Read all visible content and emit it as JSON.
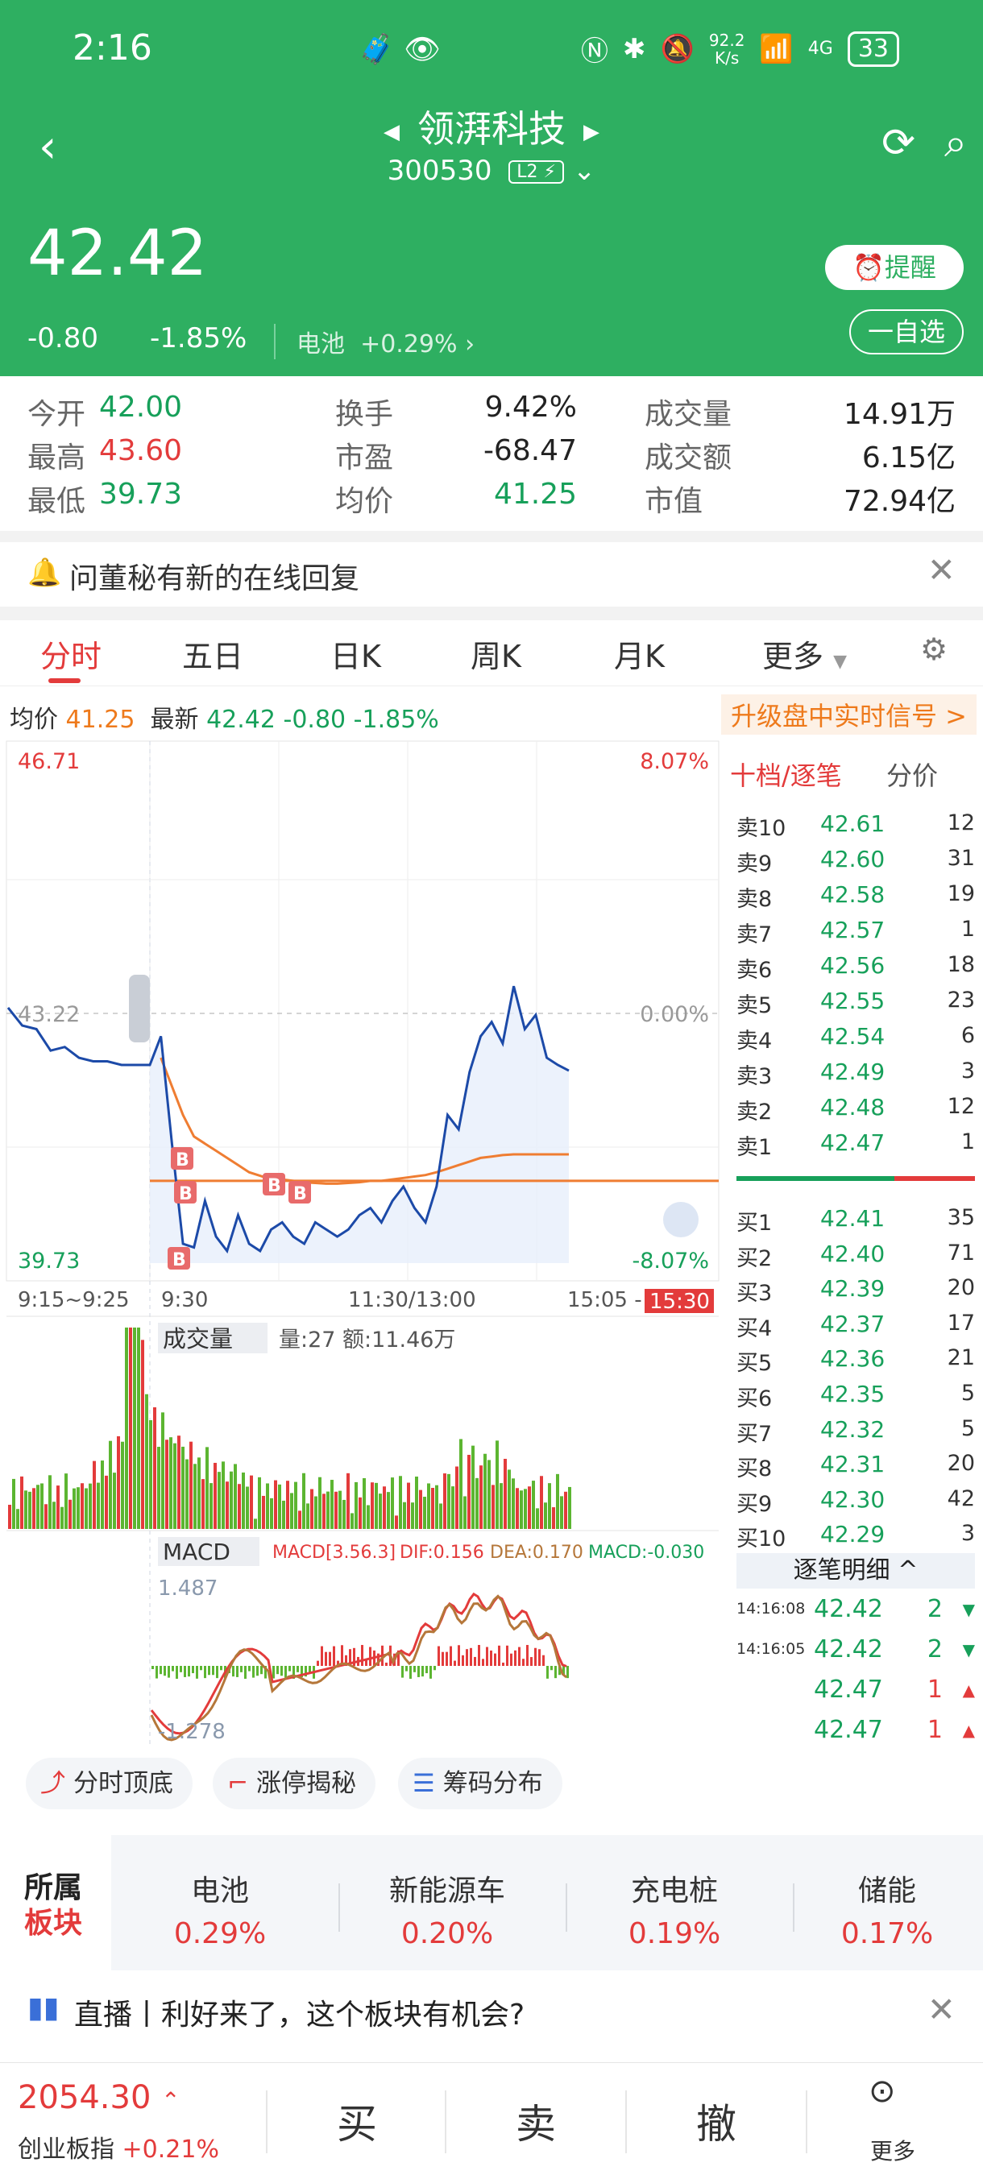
{
  "status": {
    "time": "2:16",
    "net_speed": "92.2",
    "net_unit": "K/s",
    "signal": "6",
    "net_type": "4G",
    "battery": "33"
  },
  "header": {
    "stock_name": "领湃科技",
    "stock_code": "300530",
    "level_tag": "L2",
    "price": "42.42",
    "change": "-0.80",
    "change_pct": "-1.85%",
    "sector_name": "电池",
    "sector_change": "+0.29%",
    "alert_label": "提醒",
    "watchlist_label": "一自选"
  },
  "stats": [
    {
      "label": "今开",
      "value": "42.00",
      "color": "green"
    },
    {
      "label": "换手",
      "value": "9.42%",
      "color": "black"
    },
    {
      "label": "成交量",
      "value": "14.91万",
      "color": "black"
    },
    {
      "label": "最高",
      "value": "43.60",
      "color": "red"
    },
    {
      "label": "市盈",
      "value": "-68.47",
      "color": "black"
    },
    {
      "label": "成交额",
      "value": "6.15亿",
      "color": "black"
    },
    {
      "label": "最低",
      "value": "39.73",
      "color": "green"
    },
    {
      "label": "均价",
      "value": "41.25",
      "color": "green"
    },
    {
      "label": "市值",
      "value": "72.94亿",
      "color": "black"
    }
  ],
  "notice": {
    "text": "问董秘有新的在线回复"
  },
  "tabs": [
    "分时",
    "五日",
    "日K",
    "周K",
    "月K",
    "更多"
  ],
  "infobar": {
    "avg_label": "均价",
    "avg_value": "41.25",
    "last_label": "最新",
    "last_value": "42.42",
    "last_change": "-0.80",
    "last_pct": "-1.85%",
    "upgrade": "升级盘中实时信号 >"
  },
  "chart_data": {
    "type": "line",
    "title": "",
    "y_high": "46.71",
    "y_mid": "43.22",
    "y_low": "39.73",
    "pct_high": "8.07%",
    "pct_mid": "0.00%",
    "pct_low": "-8.07%",
    "x_labels": [
      "9:15~9:25",
      "9:30",
      "11:30/13:00",
      "15:05 -",
      "15:30"
    ],
    "ylim": [
      39.73,
      46.71
    ],
    "series": [
      {
        "name": "price",
        "color": "#1c4aa8",
        "values": [
          43.3,
          43.05,
          43.0,
          42.7,
          42.75,
          42.6,
          42.55,
          42.55,
          42.5,
          42.5,
          42.5,
          42.9,
          41.4,
          40.0,
          39.95,
          40.6,
          40.1,
          39.9,
          40.4,
          40.0,
          39.9,
          40.2,
          40.3,
          40.1,
          40.0,
          40.3,
          40.2,
          40.1,
          40.2,
          40.4,
          40.5,
          40.3,
          40.6,
          40.8,
          40.5,
          40.3,
          40.8,
          41.8,
          41.6,
          42.4,
          42.9,
          43.1,
          42.8,
          43.6,
          43.0,
          43.2,
          42.6,
          42.5,
          42.42
        ]
      },
      {
        "name": "avg",
        "color": "#ef7d32",
        "values": [
          null,
          null,
          null,
          null,
          null,
          null,
          null,
          null,
          null,
          null,
          null,
          42.6,
          42.2,
          41.8,
          41.5,
          41.4,
          41.3,
          41.2,
          41.1,
          41.0,
          40.95,
          40.9,
          40.9,
          40.88,
          40.86,
          40.85,
          40.84,
          40.84,
          40.85,
          40.86,
          40.88,
          40.88,
          40.9,
          40.92,
          40.94,
          40.96,
          41.0,
          41.05,
          41.1,
          41.15,
          41.2,
          41.22,
          41.24,
          41.25,
          41.25,
          41.25,
          41.25,
          41.25,
          41.25
        ]
      }
    ],
    "ref_line": 40.88,
    "volume": {
      "label": "成交量",
      "text": "量:27 额:11.46万"
    },
    "macd": {
      "label": "MACD",
      "params": "MACD[3.56.3]",
      "dif": "DIF:0.156",
      "dea": "DEA:0.170",
      "macd": "MACD:-0.030",
      "top": "1.487",
      "bottom": "-1.278"
    }
  },
  "book": {
    "tab1": "十档/逐笔",
    "tab2": "分价",
    "asks": [
      {
        "l": "卖10",
        "p": "42.61",
        "q": "12"
      },
      {
        "l": "卖9",
        "p": "42.60",
        "q": "31"
      },
      {
        "l": "卖8",
        "p": "42.58",
        "q": "19"
      },
      {
        "l": "卖7",
        "p": "42.57",
        "q": "1"
      },
      {
        "l": "卖6",
        "p": "42.56",
        "q": "18"
      },
      {
        "l": "卖5",
        "p": "42.55",
        "q": "23"
      },
      {
        "l": "卖4",
        "p": "42.54",
        "q": "6"
      },
      {
        "l": "卖3",
        "p": "42.49",
        "q": "3"
      },
      {
        "l": "卖2",
        "p": "42.48",
        "q": "12"
      },
      {
        "l": "卖1",
        "p": "42.47",
        "q": "1"
      }
    ],
    "bids": [
      {
        "l": "买1",
        "p": "42.41",
        "q": "35"
      },
      {
        "l": "买2",
        "p": "42.40",
        "q": "71"
      },
      {
        "l": "买3",
        "p": "42.39",
        "q": "20"
      },
      {
        "l": "买4",
        "p": "42.37",
        "q": "17"
      },
      {
        "l": "买5",
        "p": "42.36",
        "q": "21"
      },
      {
        "l": "买6",
        "p": "42.35",
        "q": "5"
      },
      {
        "l": "买7",
        "p": "42.32",
        "q": "5"
      },
      {
        "l": "买8",
        "p": "42.31",
        "q": "20"
      },
      {
        "l": "买9",
        "p": "42.30",
        "q": "42"
      },
      {
        "l": "买10",
        "p": "42.29",
        "q": "3"
      }
    ],
    "tick_header": "逐笔明细 ^",
    "ticks": [
      {
        "t": "14:16:08",
        "p": "42.42",
        "q": "2",
        "dir": "down"
      },
      {
        "t": "14:16:05",
        "p": "42.42",
        "q": "2",
        "dir": "down"
      },
      {
        "t": "",
        "p": "42.47",
        "q": "1",
        "dir": "up"
      },
      {
        "t": "",
        "p": "42.47",
        "q": "1",
        "dir": "up"
      }
    ]
  },
  "tools": [
    "分时顶底",
    "涨停揭秘",
    "筹码分布"
  ],
  "sectors": {
    "title1": "所属",
    "title2": "板块",
    "items": [
      {
        "name": "电池",
        "pct": "0.29%"
      },
      {
        "name": "新能源车",
        "pct": "0.20%"
      },
      {
        "name": "充电桩",
        "pct": "0.19%"
      },
      {
        "name": "储能",
        "pct": "0.17%"
      }
    ]
  },
  "live": {
    "text": "直播丨利好来了，这个板块有机会?"
  },
  "bottom": {
    "index_value": "2054.30",
    "index_name": "创业板指",
    "index_change": "+0.21%",
    "buy": "买",
    "sell": "卖",
    "cancel": "撤",
    "more": "更多"
  }
}
